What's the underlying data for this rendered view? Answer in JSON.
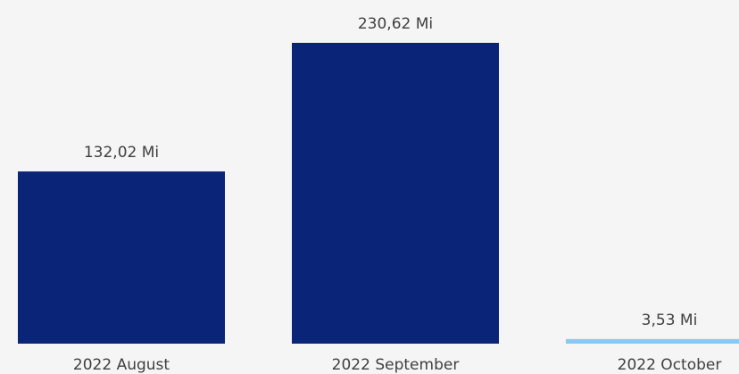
{
  "chart_data": {
    "type": "bar",
    "categories": [
      "2022 August",
      "2022 September",
      "2022 October"
    ],
    "values": [
      132.02,
      230.62,
      3.53
    ],
    "data_labels": [
      "132,02 Mi",
      "230,62 Mi",
      "3,53 Mi"
    ],
    "colors": [
      "#0a2477",
      "#0a2477",
      "#8cc8f2"
    ],
    "title": "",
    "xlabel": "",
    "ylabel": "",
    "ylim": [
      0,
      230.62
    ],
    "grid": false,
    "legend": "none"
  },
  "colors": {
    "background": "#f5f5f5",
    "text": "#404040"
  }
}
